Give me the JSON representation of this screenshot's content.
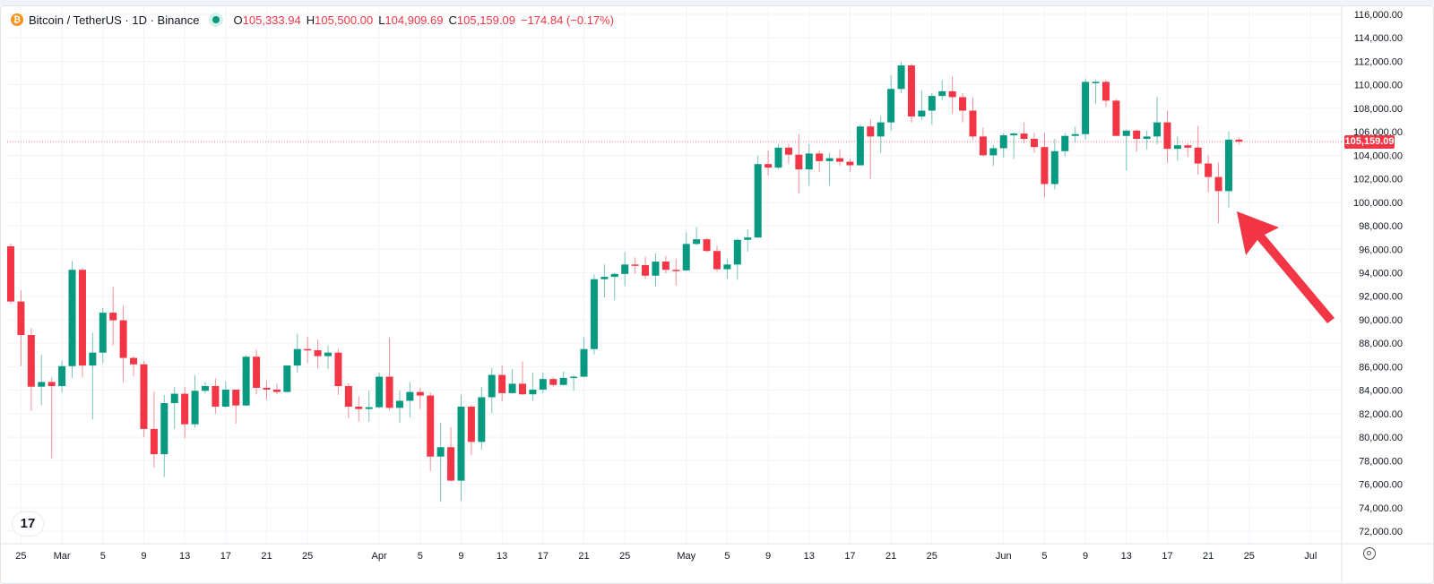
{
  "header": {
    "title": "Bitcoin / TetherUS · 1D · Binance",
    "logo_icon": "bitcoin-icon",
    "open_label": "O",
    "open": "105,333.94",
    "high_label": "H",
    "high": "105,500.00",
    "low_label": "L",
    "low": "104,909.69",
    "close_label": "C",
    "close": "105,159.09",
    "change": "−174.84 (−0.17%)"
  },
  "colors": {
    "up": "#089981",
    "down": "#f23645",
    "arrow": "#f23645"
  },
  "chart_data": {
    "type": "candlestick",
    "symbol": "Bitcoin / TetherUS",
    "interval": "1D",
    "exchange": "Binance",
    "last_price": 105159.09,
    "last_price_label": "105,159.09",
    "ylim": [
      72000,
      116000
    ],
    "y_ticks": [
      "116,000.00",
      "114,000.00",
      "112,000.00",
      "110,000.00",
      "108,000.00",
      "106,000.00",
      "104,000.00",
      "102,000.00",
      "100,000.00",
      "98,000.00",
      "96,000.00",
      "94,000.00",
      "92,000.00",
      "90,000.00",
      "88,000.00",
      "86,000.00",
      "84,000.00",
      "82,000.00",
      "80,000.00",
      "78,000.00",
      "76,000.00",
      "74,000.00",
      "72,000.00"
    ],
    "x_ticks": [
      {
        "label": "25",
        "date": "Feb 25"
      },
      {
        "label": "Mar",
        "date": "Mar 1"
      },
      {
        "label": "5",
        "date": "Mar 5"
      },
      {
        "label": "9",
        "date": "Mar 9"
      },
      {
        "label": "13",
        "date": "Mar 13"
      },
      {
        "label": "17",
        "date": "Mar 17"
      },
      {
        "label": "21",
        "date": "Mar 21"
      },
      {
        "label": "25",
        "date": "Mar 25"
      },
      {
        "label": "Apr",
        "date": "Apr 1"
      },
      {
        "label": "5",
        "date": "Apr 5"
      },
      {
        "label": "9",
        "date": "Apr 9"
      },
      {
        "label": "13",
        "date": "Apr 13"
      },
      {
        "label": "17",
        "date": "Apr 17"
      },
      {
        "label": "21",
        "date": "Apr 21"
      },
      {
        "label": "25",
        "date": "Apr 25"
      },
      {
        "label": "May",
        "date": "May 1"
      },
      {
        "label": "5",
        "date": "May 5"
      },
      {
        "label": "9",
        "date": "May 9"
      },
      {
        "label": "13",
        "date": "May 13"
      },
      {
        "label": "17",
        "date": "May 17"
      },
      {
        "label": "21",
        "date": "May 21"
      },
      {
        "label": "25",
        "date": "May 25"
      },
      {
        "label": "Jun",
        "date": "Jun 1"
      },
      {
        "label": "5",
        "date": "Jun 5"
      },
      {
        "label": "9",
        "date": "Jun 9"
      },
      {
        "label": "13",
        "date": "Jun 13"
      },
      {
        "label": "17",
        "date": "Jun 17"
      },
      {
        "label": "21",
        "date": "Jun 21"
      },
      {
        "label": "25",
        "date": "Jun 25"
      },
      {
        "label": "Jul",
        "date": "Jul 1"
      }
    ],
    "dates": [
      "Feb 24",
      "Feb 25",
      "Feb 26",
      "Feb 27",
      "Feb 28",
      "Mar 1",
      "Mar 2",
      "Mar 3",
      "Mar 4",
      "Mar 5",
      "Mar 6",
      "Mar 7",
      "Mar 8",
      "Mar 9",
      "Mar 10",
      "Mar 11",
      "Mar 12",
      "Mar 13",
      "Mar 14",
      "Mar 15",
      "Mar 16",
      "Mar 17",
      "Mar 18",
      "Mar 19",
      "Mar 20",
      "Mar 21",
      "Mar 22",
      "Mar 23",
      "Mar 24",
      "Mar 25",
      "Mar 26",
      "Mar 27",
      "Mar 28",
      "Mar 29",
      "Mar 30",
      "Mar 31",
      "Apr 1",
      "Apr 2",
      "Apr 3",
      "Apr 4",
      "Apr 5",
      "Apr 6",
      "Apr 7",
      "Apr 8",
      "Apr 9",
      "Apr 10",
      "Apr 11",
      "Apr 12",
      "Apr 13",
      "Apr 14",
      "Apr 15",
      "Apr 16",
      "Apr 17",
      "Apr 18",
      "Apr 19",
      "Apr 20",
      "Apr 21",
      "Apr 22",
      "Apr 23",
      "Apr 24",
      "Apr 25",
      "Apr 26",
      "Apr 27",
      "Apr 28",
      "Apr 29",
      "Apr 30",
      "May 1",
      "May 2",
      "May 3",
      "May 4",
      "May 5",
      "May 6",
      "May 7",
      "May 8",
      "May 9",
      "May 10",
      "May 11",
      "May 12",
      "May 13",
      "May 14",
      "May 15",
      "May 16",
      "May 17",
      "May 18",
      "May 19",
      "May 20",
      "May 21",
      "May 22",
      "May 23",
      "May 24",
      "May 25",
      "May 26",
      "May 27",
      "May 28",
      "May 29",
      "May 30",
      "May 31",
      "Jun 1",
      "Jun 2",
      "Jun 3",
      "Jun 4",
      "Jun 5",
      "Jun 6",
      "Jun 7",
      "Jun 8",
      "Jun 9",
      "Jun 10",
      "Jun 11",
      "Jun 12",
      "Jun 13",
      "Jun 14",
      "Jun 15",
      "Jun 16",
      "Jun 17",
      "Jun 18",
      "Jun 19",
      "Jun 20",
      "Jun 21",
      "Jun 22",
      "Jun 23",
      "Jun 24"
    ],
    "ohlc": [
      [
        96250,
        96500,
        91350,
        91550
      ],
      [
        91550,
        92500,
        86050,
        88700
      ],
      [
        88700,
        89300,
        82250,
        84300
      ],
      [
        84300,
        87000,
        82700,
        84700
      ],
      [
        84700,
        85100,
        78200,
        84350
      ],
      [
        84350,
        86500,
        83800,
        86050
      ],
      [
        86050,
        95000,
        85050,
        94250
      ],
      [
        94250,
        94400,
        85100,
        86100
      ],
      [
        86100,
        88900,
        81500,
        87200
      ],
      [
        87200,
        91000,
        86300,
        90600
      ],
      [
        90600,
        92800,
        87800,
        89950
      ],
      [
        89950,
        91200,
        84700,
        86750
      ],
      [
        86750,
        86900,
        85200,
        86200
      ],
      [
        86200,
        86500,
        80000,
        80700
      ],
      [
        80700,
        83900,
        77400,
        78550
      ],
      [
        78550,
        83600,
        76600,
        82900
      ],
      [
        82900,
        84300,
        80700,
        83700
      ],
      [
        83700,
        84300,
        79900,
        81100
      ],
      [
        81100,
        85300,
        80800,
        83950
      ],
      [
        83950,
        84700,
        83700,
        84350
      ],
      [
        84350,
        85000,
        82000,
        82600
      ],
      [
        82600,
        84750,
        82500,
        84050
      ],
      [
        84050,
        84050,
        81150,
        82700
      ],
      [
        82700,
        87000,
        82650,
        86850
      ],
      [
        86850,
        87450,
        83650,
        84200
      ],
      [
        84200,
        84800,
        83200,
        84050
      ],
      [
        84050,
        84550,
        83650,
        83850
      ],
      [
        83850,
        86100,
        83800,
        86100
      ],
      [
        86100,
        88800,
        85500,
        87500
      ],
      [
        87500,
        88550,
        86300,
        87400
      ],
      [
        87400,
        88300,
        85850,
        86900
      ],
      [
        86900,
        87800,
        85800,
        87200
      ],
      [
        87200,
        87500,
        83600,
        84350
      ],
      [
        84350,
        84600,
        81600,
        82600
      ],
      [
        82600,
        83500,
        81350,
        82400
      ],
      [
        82400,
        83950,
        81300,
        82550
      ],
      [
        82550,
        85500,
        82450,
        85150
      ],
      [
        85150,
        88500,
        82300,
        82500
      ],
      [
        82500,
        83950,
        81200,
        83100
      ],
      [
        83100,
        84700,
        81700,
        83850
      ],
      [
        83850,
        84200,
        82400,
        83550
      ],
      [
        83550,
        83800,
        77100,
        78350
      ],
      [
        78350,
        81250,
        74500,
        79150
      ],
      [
        79150,
        80850,
        76250,
        76300
      ],
      [
        76300,
        83600,
        74600,
        82600
      ],
      [
        82600,
        82750,
        78450,
        79600
      ],
      [
        79600,
        84300,
        78950,
        83400
      ],
      [
        83400,
        85900,
        82050,
        85300
      ],
      [
        85300,
        86100,
        83050,
        83750
      ],
      [
        83750,
        85800,
        83700,
        84550
      ],
      [
        84550,
        86450,
        83600,
        83650
      ],
      [
        83650,
        85500,
        83100,
        84050
      ],
      [
        84050,
        85500,
        83750,
        84950
      ],
      [
        84950,
        85100,
        84300,
        84450
      ],
      [
        84450,
        85600,
        84400,
        85050
      ],
      [
        85050,
        85300,
        83950,
        85150
      ],
      [
        85150,
        88500,
        85100,
        87500
      ],
      [
        87500,
        93850,
        87050,
        93450
      ],
      [
        93450,
        94700,
        91900,
        93650
      ],
      [
        93650,
        94000,
        91650,
        93900
      ],
      [
        93900,
        95750,
        92850,
        94700
      ],
      [
        94700,
        95300,
        93900,
        94650
      ],
      [
        94650,
        95350,
        93500,
        93750
      ],
      [
        93750,
        95650,
        92800,
        94950
      ],
      [
        94950,
        95450,
        93950,
        94250
      ],
      [
        94250,
        95200,
        92900,
        94200
      ],
      [
        94200,
        97450,
        94150,
        96450
      ],
      [
        96450,
        97900,
        96350,
        96850
      ],
      [
        96850,
        96950,
        95750,
        95850
      ],
      [
        95850,
        96300,
        94100,
        94300
      ],
      [
        94300,
        95200,
        93500,
        94700
      ],
      [
        94700,
        96900,
        93400,
        96800
      ],
      [
        96800,
        97700,
        95800,
        97000
      ],
      [
        97000,
        103950,
        96950,
        103250
      ],
      [
        103250,
        104400,
        102300,
        102950
      ],
      [
        102950,
        104950,
        102800,
        104650
      ],
      [
        104650,
        104950,
        103300,
        104050
      ],
      [
        104050,
        105800,
        100750,
        102800
      ],
      [
        102800,
        104950,
        101400,
        104150
      ],
      [
        104150,
        104400,
        102600,
        103500
      ],
      [
        103500,
        104200,
        101400,
        103750
      ],
      [
        103750,
        104500,
        103100,
        103450
      ],
      [
        103450,
        103700,
        102600,
        103150
      ],
      [
        103150,
        106650,
        103100,
        106450
      ],
      [
        106450,
        107100,
        102000,
        105600
      ],
      [
        105600,
        107300,
        104200,
        106800
      ],
      [
        106800,
        110800,
        106100,
        109650
      ],
      [
        109650,
        111950,
        109300,
        111650
      ],
      [
        111650,
        111800,
        106800,
        107300
      ],
      [
        107300,
        109500,
        107000,
        107800
      ],
      [
        107800,
        109300,
        106600,
        109050
      ],
      [
        109050,
        110400,
        108700,
        109450
      ],
      [
        109450,
        110700,
        107550,
        108950
      ],
      [
        108950,
        109300,
        106800,
        107800
      ],
      [
        107800,
        108900,
        105350,
        105600
      ],
      [
        105600,
        106350,
        103900,
        104000
      ],
      [
        104000,
        104900,
        103100,
        104600
      ],
      [
        104600,
        105900,
        103800,
        105700
      ],
      [
        105700,
        105950,
        103700,
        105850
      ],
      [
        105850,
        106800,
        105000,
        105400
      ],
      [
        105400,
        105900,
        104200,
        104700
      ],
      [
        104700,
        105900,
        100400,
        101550
      ],
      [
        101550,
        105400,
        101100,
        104350
      ],
      [
        104350,
        105900,
        103900,
        105650
      ],
      [
        105650,
        106450,
        105100,
        105800
      ],
      [
        105800,
        110550,
        105350,
        110250
      ],
      [
        110250,
        110400,
        108400,
        110250
      ],
      [
        110250,
        110400,
        108100,
        108650
      ],
      [
        108650,
        108800,
        105650,
        105650
      ],
      [
        105650,
        106200,
        102700,
        106100
      ],
      [
        106100,
        106200,
        104300,
        105400
      ],
      [
        105400,
        106100,
        104500,
        105600
      ],
      [
        105600,
        108950,
        104950,
        106800
      ],
      [
        106800,
        107800,
        103350,
        104550
      ],
      [
        104550,
        105600,
        103550,
        104850
      ],
      [
        104850,
        105000,
        103850,
        104650
      ],
      [
        104650,
        106500,
        102350,
        103300
      ],
      [
        103300,
        104000,
        100850,
        102150
      ],
      [
        102150,
        103400,
        98200,
        100950
      ],
      [
        100950,
        106000,
        99550,
        105333.94
      ],
      [
        105333.94,
        105500,
        104909.69,
        105159.09
      ]
    ],
    "grid": true,
    "annotation": "red arrow pointing at latest candles"
  }
}
